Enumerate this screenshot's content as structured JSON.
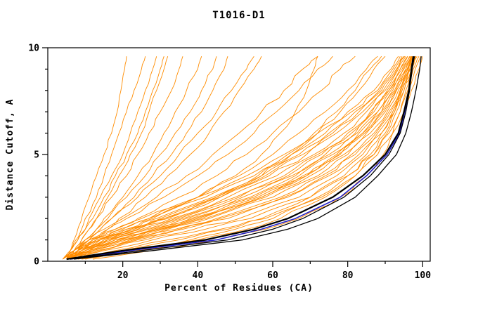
{
  "chart_data": {
    "type": "line",
    "title": "T1016-D1",
    "xlabel": "Percent of Residues (CA)",
    "ylabel": "Distance Cutoff, A",
    "xlim": [
      0,
      102
    ],
    "ylim": [
      0,
      10
    ],
    "x_major_ticks": [
      20,
      40,
      60,
      80,
      100
    ],
    "x_minor_step": 10,
    "y_major_ticks": [
      0,
      5,
      10
    ],
    "y_minor_step": 1,
    "grid": false,
    "legend": "none",
    "colors": {
      "orange": "#ff8c00",
      "black": "#000000",
      "blue": "#2121c8"
    },
    "y_anchors": [
      0.1,
      0.5,
      1,
      1.5,
      2,
      3,
      4,
      5,
      6,
      7,
      8,
      9,
      9.6
    ],
    "series": [
      {
        "color": "orange",
        "x": [
          5,
          8,
          14,
          22,
          30,
          45,
          58,
          68,
          76,
          83,
          89,
          93,
          95
        ]
      },
      {
        "color": "orange",
        "x": [
          5,
          9,
          16,
          25,
          34,
          50,
          63,
          72,
          80,
          86,
          91,
          94,
          96
        ]
      },
      {
        "color": "orange",
        "x": [
          6,
          10,
          18,
          28,
          38,
          55,
          67,
          76,
          83,
          88,
          92,
          95,
          97
        ]
      },
      {
        "color": "orange",
        "x": [
          4,
          7,
          12,
          19,
          27,
          42,
          55,
          65,
          74,
          81,
          88,
          92,
          94
        ]
      },
      {
        "color": "orange",
        "x": [
          6,
          11,
          20,
          31,
          42,
          58,
          70,
          79,
          85,
          90,
          93,
          96,
          97.5
        ]
      },
      {
        "color": "orange",
        "x": [
          5,
          10,
          17,
          27,
          36,
          52,
          65,
          74,
          82,
          87,
          91,
          94.5,
          96.5
        ]
      },
      {
        "color": "orange",
        "x": [
          7,
          12,
          22,
          34,
          45,
          62,
          73,
          81,
          87,
          91,
          94,
          96.5,
          98
        ]
      },
      {
        "color": "orange",
        "x": [
          5,
          9,
          15,
          24,
          33,
          48,
          61,
          71,
          79,
          85,
          90,
          93.5,
          95.5
        ]
      },
      {
        "color": "orange",
        "x": [
          6,
          12,
          21,
          32,
          43,
          60,
          72,
          80,
          86,
          90.5,
          93.5,
          96,
          97.5
        ]
      },
      {
        "color": "orange",
        "x": [
          4,
          8,
          13,
          21,
          29,
          44,
          57,
          67,
          75,
          82,
          88.5,
          92.5,
          94.5
        ]
      },
      {
        "color": "orange",
        "x": [
          7,
          13,
          24,
          36,
          48,
          64,
          75,
          83,
          88,
          92,
          94.5,
          97,
          98.5
        ]
      },
      {
        "color": "orange",
        "x": [
          5,
          10,
          18,
          29,
          39,
          56,
          68,
          77,
          84,
          89,
          92.5,
          95.5,
          97
        ]
      },
      {
        "color": "orange",
        "x": [
          6,
          11,
          19,
          30,
          41,
          57,
          69,
          78,
          84.5,
          89.5,
          93,
          95.8,
          97.2
        ]
      },
      {
        "color": "orange",
        "x": [
          5,
          9,
          16,
          26,
          35,
          51,
          64,
          73,
          81,
          86.5,
          90.5,
          94,
          96
        ]
      },
      {
        "color": "orange",
        "x": [
          8,
          14,
          26,
          39,
          51,
          67,
          77,
          84,
          89,
          92.5,
          95,
          97.5,
          99
        ]
      },
      {
        "color": "orange",
        "x": [
          4,
          7,
          11,
          18,
          25,
          40,
          53,
          63,
          72,
          80,
          87,
          91.5,
          93.5
        ]
      },
      {
        "color": "orange",
        "x": [
          6,
          10,
          17,
          28,
          37,
          54,
          66,
          75,
          82.5,
          88,
          91.5,
          94.8,
          96.8
        ]
      },
      {
        "color": "orange",
        "x": [
          5,
          8,
          14,
          23,
          31,
          46,
          59,
          69,
          77,
          84,
          89.5,
          93.2,
          95.2
        ]
      },
      {
        "color": "orange",
        "x": [
          7,
          12,
          23,
          35,
          46,
          63,
          74,
          82,
          87.5,
          91.5,
          94.2,
          96.8,
          98.2
        ]
      },
      {
        "color": "orange",
        "x": [
          6,
          11,
          20,
          30,
          40,
          57,
          69,
          77.5,
          84,
          89,
          92.8,
          95.5,
          97
        ]
      },
      {
        "color": "orange",
        "x": [
          5,
          8,
          13,
          20,
          27,
          40,
          51,
          60,
          67,
          74,
          80,
          85,
          88
        ]
      },
      {
        "color": "orange",
        "x": [
          6,
          9,
          15,
          23,
          31,
          45,
          56,
          64,
          71,
          77,
          82,
          86,
          89
        ]
      },
      {
        "color": "orange",
        "x": [
          5,
          8,
          12,
          18,
          24,
          35,
          45,
          53,
          60,
          67,
          73,
          78,
          82
        ]
      },
      {
        "color": "orange",
        "x": [
          4,
          7,
          11,
          16,
          21,
          31,
          40,
          48,
          55,
          61,
          67,
          72,
          76
        ]
      },
      {
        "color": "orange",
        "x": [
          6,
          10,
          16,
          24,
          32,
          46,
          57,
          65,
          72,
          78,
          83,
          87,
          90
        ]
      },
      {
        "color": "orange",
        "x": [
          5,
          7,
          10,
          15,
          20,
          29,
          37,
          44,
          51,
          57,
          63,
          68,
          72
        ]
      },
      {
        "color": "orange",
        "x": [
          5,
          6,
          7,
          8,
          9,
          11,
          13,
          15,
          17,
          18.5,
          19.5,
          20.5,
          21
        ]
      },
      {
        "color": "orange",
        "x": [
          5,
          6,
          7.5,
          9,
          10,
          13,
          15,
          17,
          19,
          21,
          23,
          25,
          26
        ]
      },
      {
        "color": "orange",
        "x": [
          6,
          7,
          9,
          11,
          13,
          16,
          19,
          22,
          25,
          27,
          29,
          31,
          32
        ]
      },
      {
        "color": "orange",
        "x": [
          5,
          7,
          9,
          11,
          13,
          17,
          21,
          24,
          27,
          30,
          33,
          35,
          36
        ]
      },
      {
        "color": "orange",
        "x": [
          6,
          8,
          10,
          13,
          15,
          20,
          24,
          28,
          31,
          34,
          37,
          40,
          41
        ]
      },
      {
        "color": "orange",
        "x": [
          5,
          7,
          10,
          13,
          16,
          21,
          26,
          30,
          34,
          38,
          41,
          44,
          45
        ]
      },
      {
        "color": "orange",
        "x": [
          6,
          8,
          11,
          14,
          17,
          23,
          28,
          33,
          37,
          41,
          44,
          47,
          48
        ]
      },
      {
        "color": "orange",
        "x": [
          5,
          6,
          8,
          10,
          12,
          15,
          18,
          21,
          24,
          26,
          28,
          30,
          31
        ]
      },
      {
        "color": "orange",
        "x": [
          4,
          6,
          8,
          10,
          11,
          14,
          17,
          20,
          22,
          24,
          26,
          28,
          29
        ]
      },
      {
        "color": "orange",
        "x": [
          5,
          9,
          14,
          21,
          28,
          40,
          50,
          57,
          62,
          66,
          69,
          71,
          72
        ]
      },
      {
        "color": "orange",
        "x": [
          8,
          20,
          35,
          48,
          57,
          70,
          79,
          85,
          89,
          92,
          94,
          96,
          97
        ]
      },
      {
        "color": "orange",
        "x": [
          10,
          24,
          40,
          53,
          62,
          74,
          82,
          87,
          90.5,
          93,
          95,
          96.5,
          97.5
        ]
      },
      {
        "color": "orange",
        "x": [
          12,
          28,
          45,
          58,
          67,
          78,
          85,
          89.5,
          92,
          94,
          95.5,
          97,
          98
        ]
      },
      {
        "color": "orange",
        "x": [
          9,
          22,
          38,
          50,
          60,
          72,
          80,
          86,
          90,
          92.5,
          94.5,
          96.2,
          97.2
        ]
      },
      {
        "color": "orange",
        "x": [
          7,
          15,
          28,
          42,
          54,
          70,
          80,
          87,
          91,
          94,
          96,
          98,
          99.5
        ]
      },
      {
        "color": "orange",
        "x": [
          8,
          18,
          32,
          46,
          58,
          73,
          82,
          88,
          92,
          95,
          97,
          99,
          100
        ]
      },
      {
        "color": "orange",
        "x": [
          6,
          9,
          12,
          16,
          19,
          26,
          32,
          38,
          43,
          47,
          51,
          55,
          57
        ]
      },
      {
        "color": "orange",
        "x": [
          5,
          8,
          11,
          14,
          17,
          24,
          30,
          35,
          40,
          45,
          49,
          53,
          55
        ]
      },
      {
        "color": "blue",
        "width": 1.6,
        "jitter": false,
        "x": [
          6,
          22,
          45,
          57,
          66,
          78,
          85,
          90.5,
          93.8,
          95.2,
          96.4,
          97.1,
          97.6
        ]
      },
      {
        "color": "black",
        "width": 1.3,
        "jitter": false,
        "x": [
          6,
          25,
          48,
          60,
          68,
          79,
          86,
          91,
          94,
          95.5,
          96.5,
          97.2,
          97.8
        ]
      },
      {
        "color": "black",
        "width": 2.2,
        "jitter": false,
        "x": [
          5,
          20,
          42,
          55,
          64,
          76,
          84,
          90,
          93.5,
          95,
          96.3,
          97,
          97.5
        ]
      },
      {
        "color": "black",
        "width": 1.3,
        "jitter": false,
        "x": [
          7,
          28,
          52,
          64,
          72,
          82,
          88,
          93,
          95.5,
          97,
          98.2,
          99.2,
          99.6
        ]
      }
    ]
  }
}
